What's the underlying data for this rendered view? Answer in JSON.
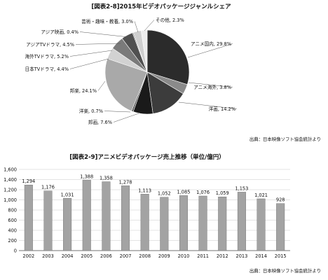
{
  "chart_data": [
    {
      "type": "pie",
      "title": "[図表2-8]2015年ビデオパッケージジャンルシェア",
      "source": "出典：日本映像ソフト協会統計より",
      "unit": "%",
      "slices": [
        {
          "label": "アニメ国内",
          "value": 29.8,
          "color": "#2b2b2b"
        },
        {
          "label": "アニメ海外",
          "value": 3.8,
          "color": "#8a8a8a"
        },
        {
          "label": "洋画",
          "value": 14.2,
          "color": "#3c3c3c"
        },
        {
          "label": "邦画",
          "value": 7.6,
          "color": "#1a1a1a"
        },
        {
          "label": "洋楽",
          "value": 0.7,
          "color": "#5a5a5a"
        },
        {
          "label": "邦楽",
          "value": 24.1,
          "color": "#a9a9a9"
        },
        {
          "label": "日本TVドラマ",
          "value": 4.4,
          "color": "#d2d2d2"
        },
        {
          "label": "海外TVドラマ",
          "value": 5.2,
          "color": "#7a7a7a"
        },
        {
          "label": "アジアTVドラマ",
          "value": 4.5,
          "color": "#505050"
        },
        {
          "label": "アジア映画",
          "value": 0.4,
          "color": "#8d8d8d"
        },
        {
          "label": "芸術・趣味・教養",
          "value": 3.0,
          "color": "#cfcfcf"
        },
        {
          "label": "その他",
          "value": 2.3,
          "color": "#ececec"
        }
      ]
    },
    {
      "type": "bar",
      "title": "[図表2-9]アニメビデオパッケージ売上推移（単位/億円）",
      "source": "出典：日本映像ソフト協会統計より",
      "categories": [
        "2002",
        "2003",
        "2004",
        "2005",
        "2006",
        "2007",
        "2008",
        "2009",
        "2010",
        "2011",
        "2012",
        "2013",
        "2014",
        "2015"
      ],
      "values": [
        1294,
        1176,
        1031,
        1388,
        1358,
        1278,
        1113,
        1052,
        1085,
        1076,
        1059,
        1153,
        1021,
        928
      ],
      "value_labels": [
        "1,294",
        "1,176",
        "1,031",
        "1,388",
        "1,358",
        "1,278",
        "1,113",
        "1,052",
        "1,085",
        "1,076",
        "1,059",
        "1,153",
        "1,021",
        "928"
      ],
      "ylim": [
        0,
        1600
      ],
      "yticks": [
        0,
        200,
        400,
        600,
        800,
        1000,
        1200,
        1400,
        1600
      ],
      "ytick_labels": [
        "0",
        "200",
        "400",
        "600",
        "800",
        "1,000",
        "1,200",
        "1,400",
        "1,600"
      ],
      "grid": true,
      "bar_color": "#a3a3a3"
    }
  ]
}
